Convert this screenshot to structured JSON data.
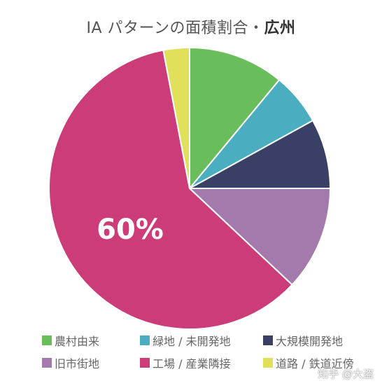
{
  "title": {
    "main": "IA パターンの面積割合・",
    "city": "広州"
  },
  "watermark": "知乎 @大盗",
  "chart_data": {
    "type": "pie",
    "title": "IA パターンの面積割合・広州",
    "slices": [
      {
        "name": "農村由来",
        "value": 11,
        "color": "#6abd5b"
      },
      {
        "name": "緑地 / 未開発地",
        "value": 6,
        "color": "#4aaec0"
      },
      {
        "name": "大規模開発地",
        "value": 8,
        "color": "#3a4065"
      },
      {
        "name": "旧市街地",
        "value": 12,
        "color": "#a47aad"
      },
      {
        "name": "工場 / 産業隣接",
        "value": 60,
        "color": "#cc3c78"
      },
      {
        "name": "道路 / 鉄道近傍",
        "value": 3,
        "color": "#e1e05a"
      }
    ],
    "data_labels": [
      "60%"
    ],
    "legend_position": "bottom"
  }
}
